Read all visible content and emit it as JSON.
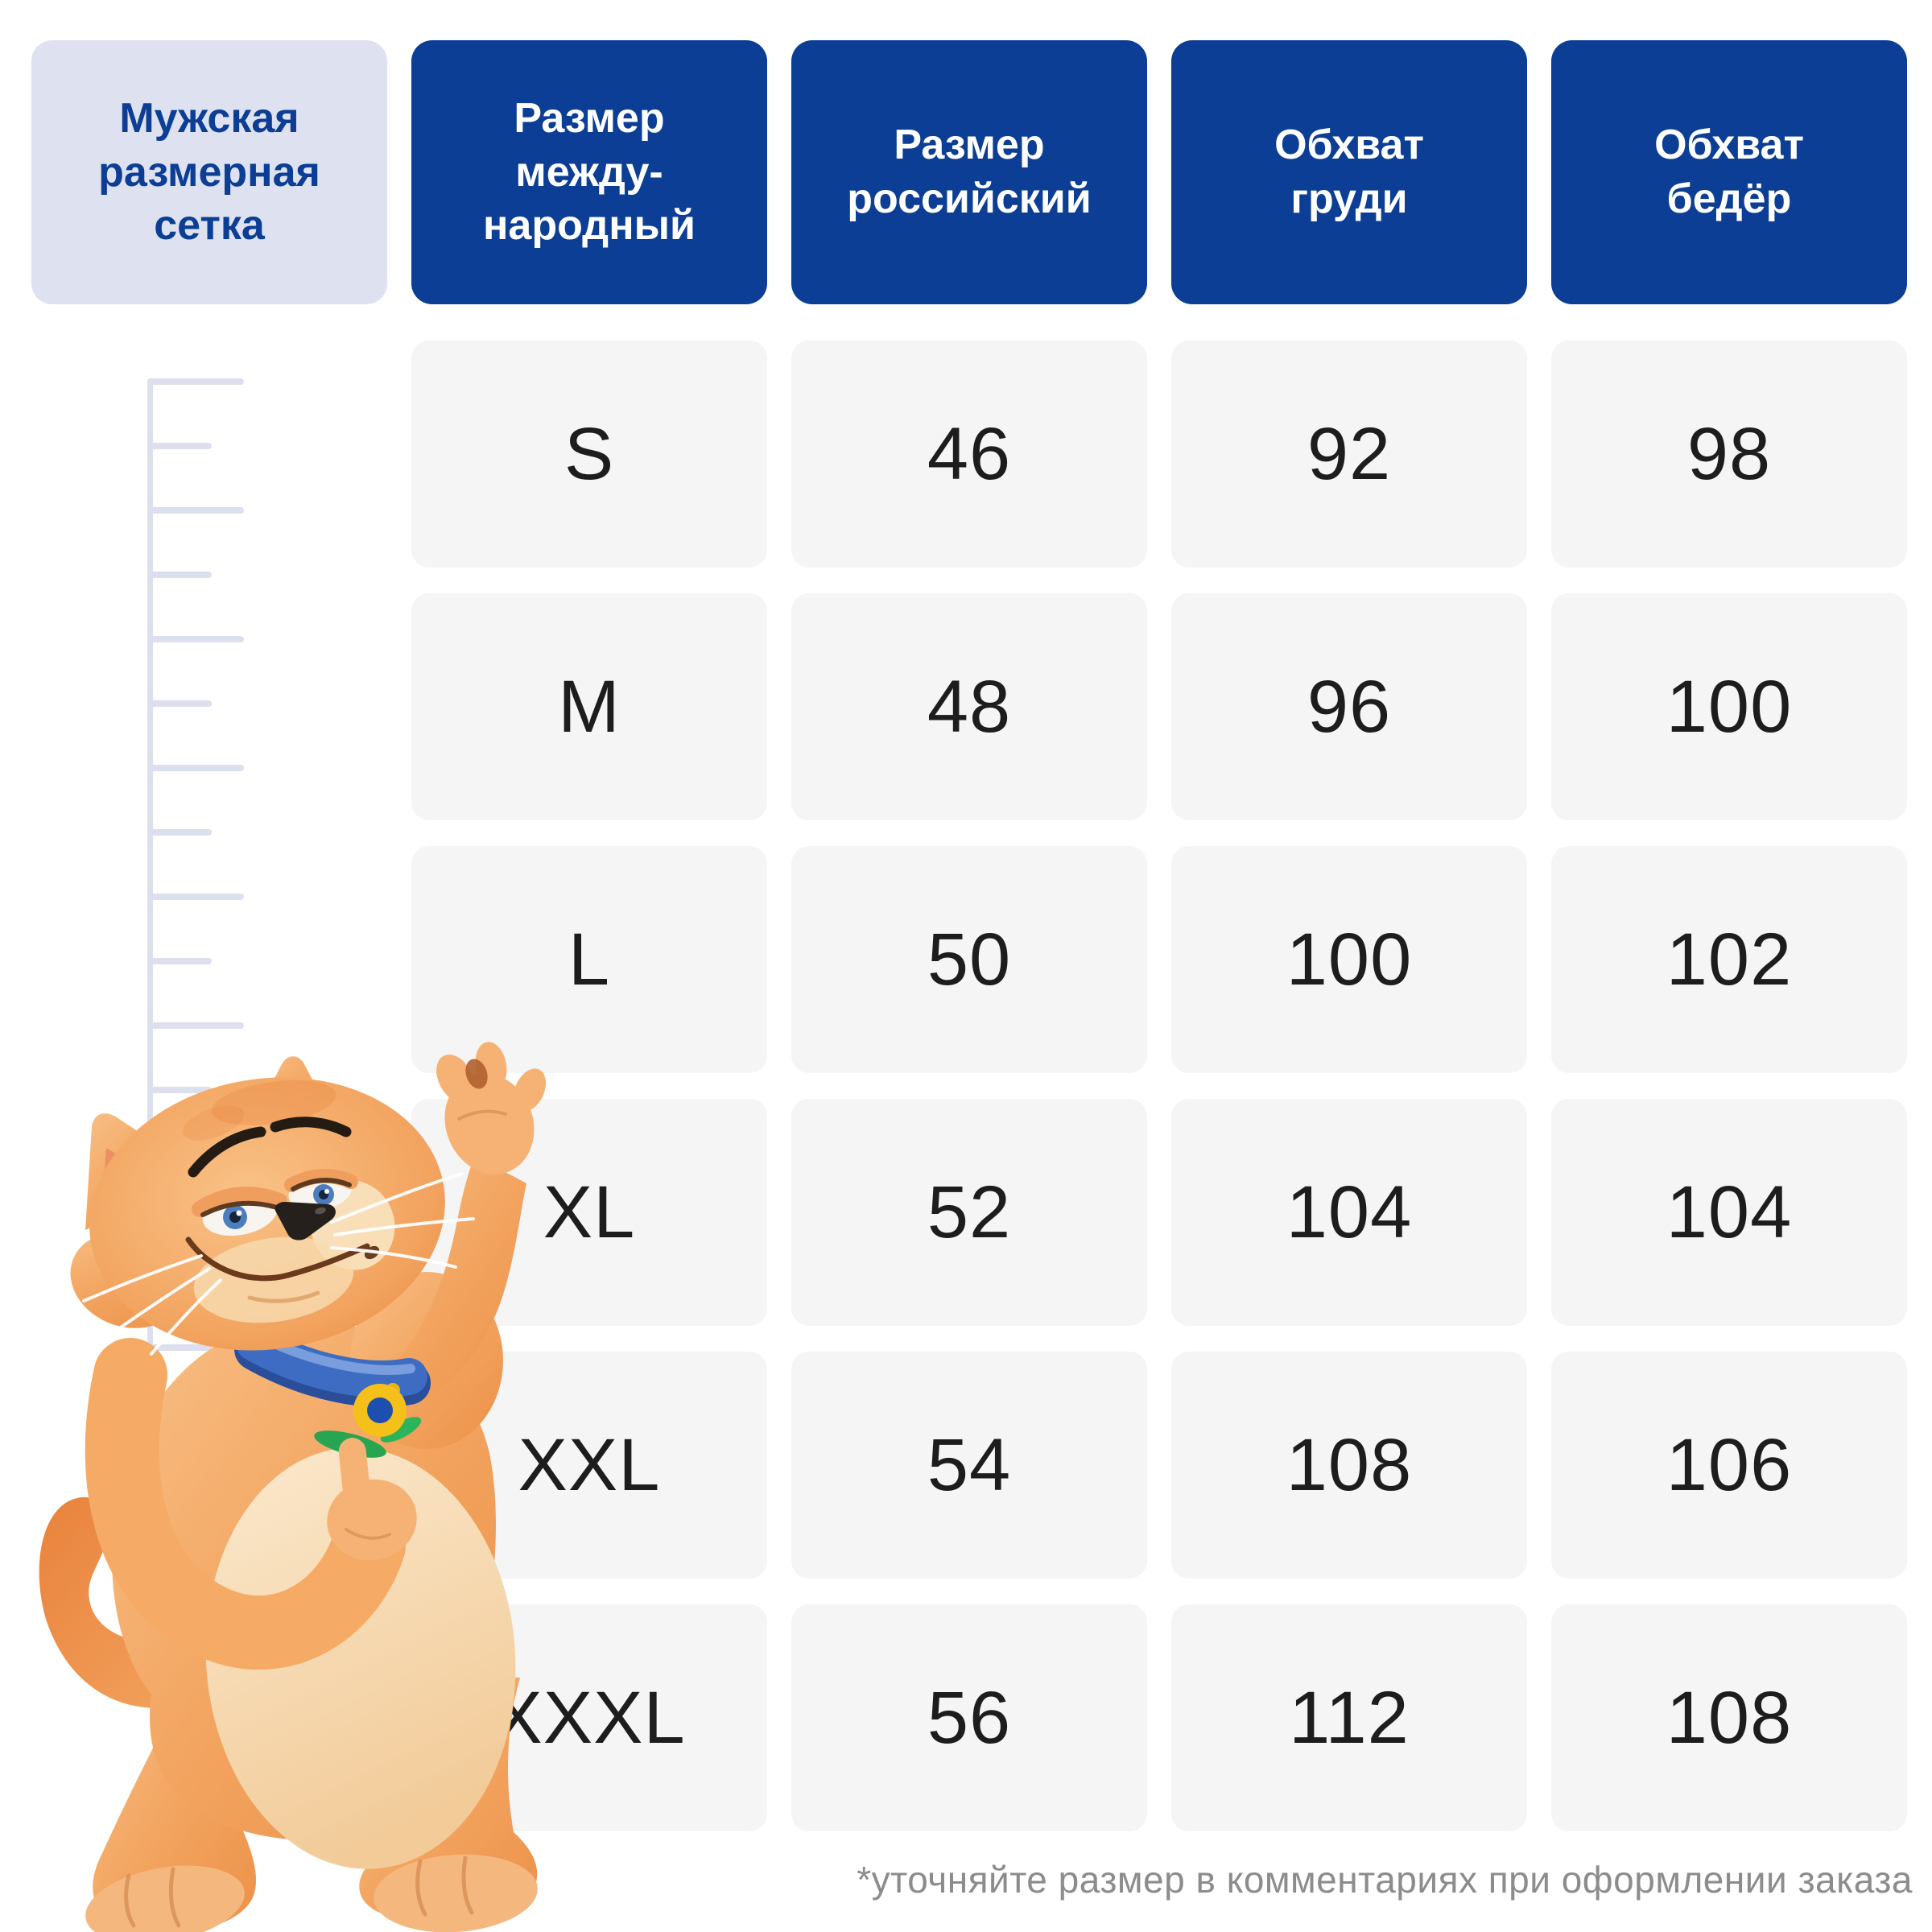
{
  "size_chart": {
    "title": "Мужская\nразмерная\nсетка",
    "columns": [
      {
        "label": "Размер\nмежду-\nнародный"
      },
      {
        "label": "Размер\nроссийский"
      },
      {
        "label": "Обхват\nгруди"
      },
      {
        "label": "Обхват\nбедёр"
      }
    ],
    "rows": [
      {
        "international": "S",
        "russian": "46",
        "chest": "92",
        "hips": "98"
      },
      {
        "international": "M",
        "russian": "48",
        "chest": "96",
        "hips": "100"
      },
      {
        "international": "L",
        "russian": "50",
        "chest": "100",
        "hips": "102"
      },
      {
        "international": "XL",
        "russian": "52",
        "chest": "104",
        "hips": "104"
      },
      {
        "international": "XXL",
        "russian": "54",
        "chest": "108",
        "hips": "106"
      },
      {
        "international": "XXXL",
        "russian": "56",
        "chest": "112",
        "hips": "108"
      }
    ],
    "footnote": "*уточняйте размер в комментариях при оформлении заказа"
  },
  "illustrations": {
    "cat_mascot": "orange-cartoon-cat-with-blue-collar-and-flower-medallion",
    "height_ruler": "vertical-measuring-scale"
  },
  "colors": {
    "header_blue": "#0b3e94",
    "tile_bg": "#dee1ef",
    "cell_bg": "#f5f5f6",
    "ruler": "#dcdfee",
    "note_gray": "#8c8c8c",
    "text_dark": "#1d1d1d",
    "collar_blue": "#3e6cc2",
    "medallion_yellow": "#f6c01b",
    "medallion_blue": "#1c4fae",
    "leaf_green": "#27a551",
    "fur_orange": "#f2a35e"
  }
}
